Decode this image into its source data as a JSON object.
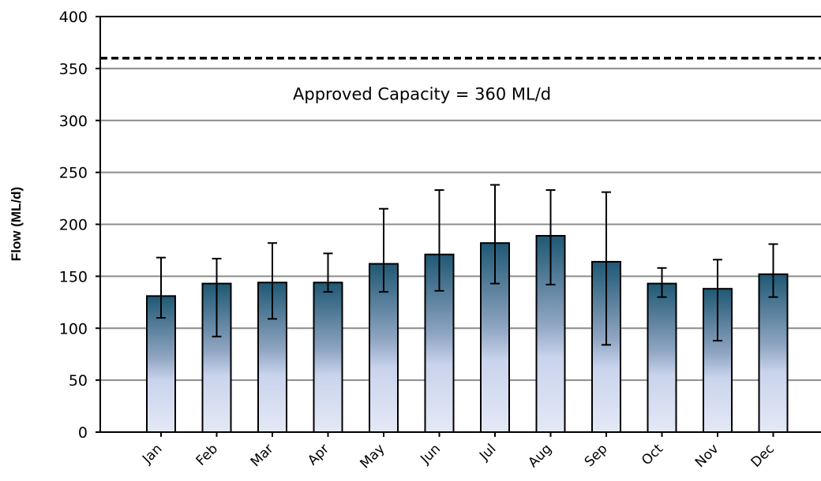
{
  "chart_data": {
    "type": "bar",
    "title": "",
    "xlabel": "",
    "ylabel": "Flow (ML/d)",
    "ylim": [
      0,
      400
    ],
    "yticks": [
      0,
      50,
      100,
      150,
      200,
      250,
      300,
      350,
      400
    ],
    "categories": [
      "Jan",
      "Feb",
      "Mar",
      "Apr",
      "May",
      "Jun",
      "Jul",
      "Aug",
      "Sep",
      "Oct",
      "Nov",
      "Dec"
    ],
    "values": [
      131,
      143,
      144,
      144,
      162,
      171,
      182,
      189,
      164,
      143,
      138,
      152
    ],
    "error_low": [
      110,
      92,
      109,
      135,
      135,
      136,
      143,
      142,
      84,
      130,
      88,
      130
    ],
    "error_high": [
      168,
      167,
      182,
      172,
      215,
      233,
      238,
      233,
      231,
      158,
      166,
      181
    ],
    "reference_line": {
      "value": 360,
      "style": "dashed",
      "label": "Approved Capacity = 360 ML/d"
    },
    "grid": true,
    "bar_gradient": {
      "top": "#1f5873",
      "mid": "#8fa5c2",
      "bottom": "#e4e9f6"
    }
  }
}
